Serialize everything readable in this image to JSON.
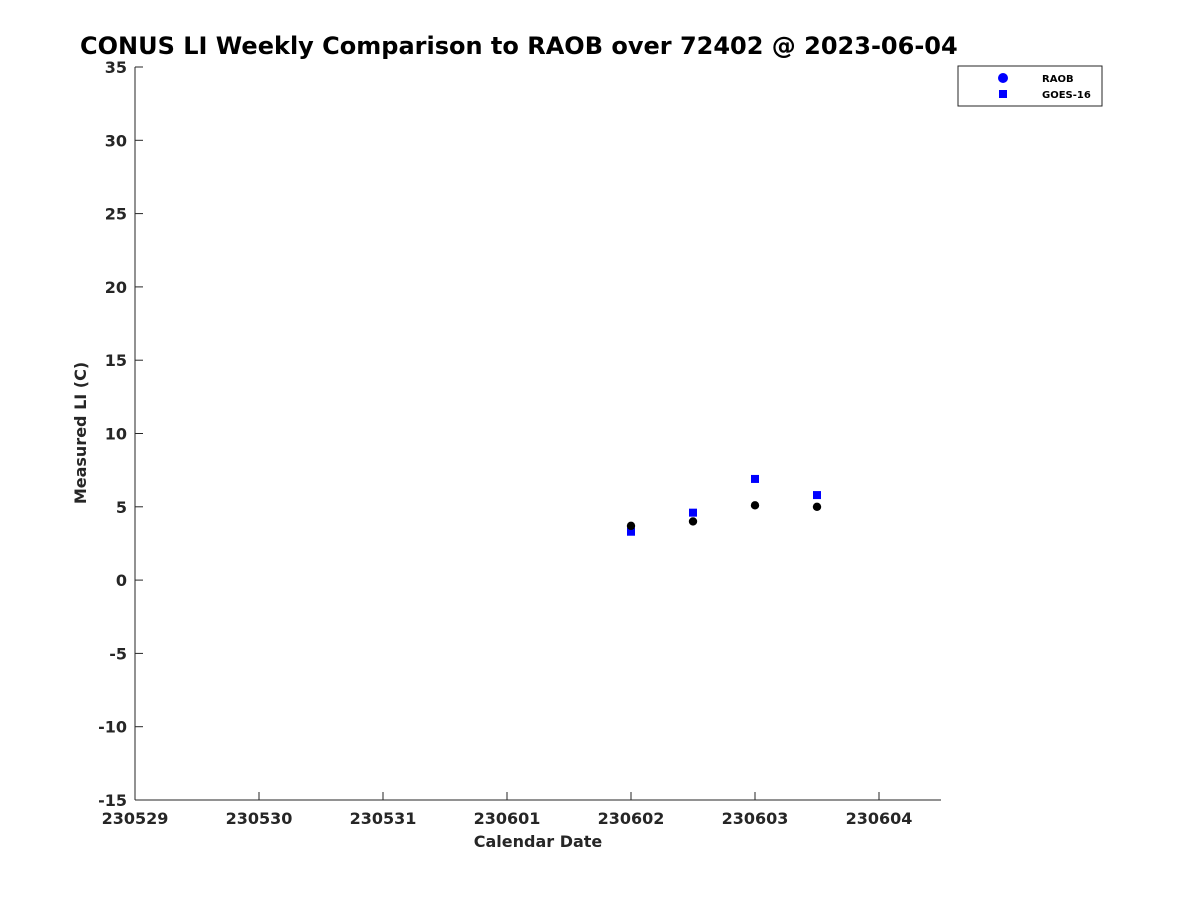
{
  "chart_data": {
    "type": "scatter",
    "title": "CONUS LI Weekly Comparison to RAOB over 72402 @ 2023-06-04",
    "xlabel": "Calendar Date",
    "ylabel": "Measured LI (C)",
    "x_ticks": [
      "230529",
      "230530",
      "230531",
      "230601",
      "230602",
      "230603",
      "230604"
    ],
    "y_ticks": [
      "35",
      "30",
      "25",
      "20",
      "15",
      "10",
      "5",
      "0",
      "-5",
      "-10",
      "-15"
    ],
    "xlim": [
      "2023-05-29 00:00",
      "2023-06-04 12:00"
    ],
    "ylim": [
      -15,
      35
    ],
    "grid": false,
    "legend_position": "top-right",
    "series": [
      {
        "name": "RAOB",
        "marker": "circle",
        "color": "#000000",
        "legend_color": "#0000ff",
        "points": [
          {
            "x": "2023-06-02 00:00",
            "y": 3.7
          },
          {
            "x": "2023-06-02 12:00",
            "y": 4.0
          },
          {
            "x": "2023-06-03 00:00",
            "y": 5.1
          },
          {
            "x": "2023-06-03 12:00",
            "y": 5.0
          }
        ]
      },
      {
        "name": "GOES-16",
        "marker": "square",
        "color": "#0000ff",
        "legend_color": "#0000ff",
        "points": [
          {
            "x": "2023-06-02 00:00",
            "y": 3.3
          },
          {
            "x": "2023-06-02 12:00",
            "y": 4.6
          },
          {
            "x": "2023-06-03 00:00",
            "y": 6.9
          },
          {
            "x": "2023-06-03 12:00",
            "y": 5.8
          }
        ]
      }
    ]
  }
}
